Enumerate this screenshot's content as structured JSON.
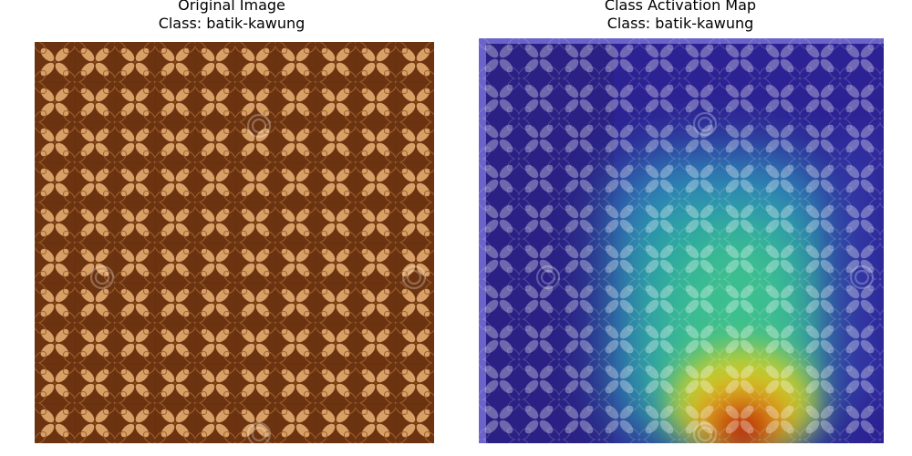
{
  "panels": [
    {
      "title": "Original Image",
      "subtitle": "Class: batik-kawung",
      "image": "batik-kawung-original"
    },
    {
      "title": "Class Activation Map",
      "subtitle": "Class: batik-kawung",
      "image": "batik-kawung-cam-heatmap-overlay"
    }
  ],
  "colors": {
    "batik_bg": "#6b3310",
    "batik_motif": "#d9a36a",
    "cam_low": "#2a1f9e",
    "cam_high": "#c41a0c"
  }
}
